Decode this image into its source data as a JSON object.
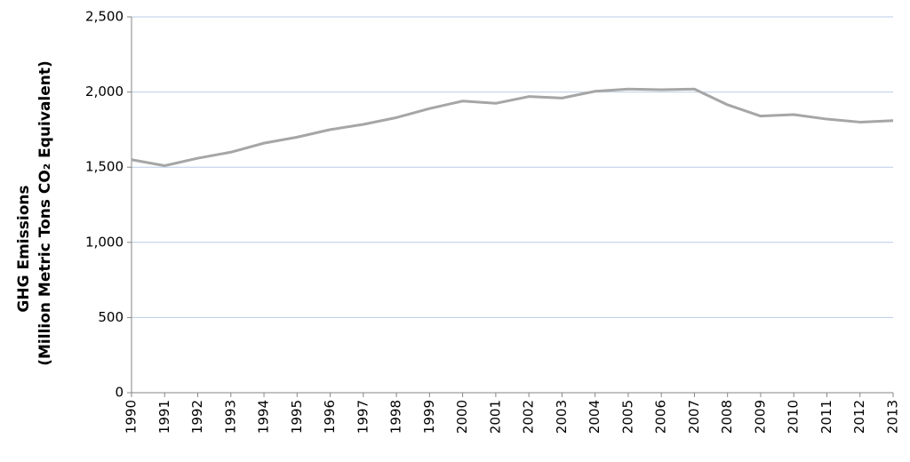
{
  "chart_data": {
    "type": "line",
    "ylabel": [
      "GHG Emissions",
      "(Million Metric Tons CO₂ Equivalent)"
    ],
    "x": [
      1990,
      1991,
      1992,
      1993,
      1994,
      1995,
      1996,
      1997,
      1998,
      1999,
      2000,
      2001,
      2002,
      2003,
      2004,
      2005,
      2006,
      2007,
      2008,
      2009,
      2010,
      2011,
      2012,
      2013
    ],
    "xlim": [
      1990,
      2013
    ],
    "xticks": [
      1990,
      1991,
      1992,
      1993,
      1994,
      1995,
      1996,
      1997,
      1998,
      1999,
      2000,
      2001,
      2002,
      2003,
      2004,
      2005,
      2006,
      2007,
      2008,
      2009,
      2010,
      2011,
      2012,
      2013
    ],
    "series": [
      {
        "color": "#a6a6a6",
        "values": [
          1550,
          1510,
          1560,
          1600,
          1660,
          1700,
          1750,
          1785,
          1830,
          1890,
          1940,
          1925,
          1970,
          1960,
          2005,
          2020,
          2015,
          2020,
          1915,
          1840,
          1850,
          1820,
          1800,
          1810
        ]
      }
    ],
    "ylim": [
      0,
      2500
    ],
    "yticks": [
      0,
      500,
      {
        "value": 1000,
        "label": "1,000"
      },
      {
        "value": 1500,
        "label": "1,500"
      },
      {
        "value": 2000,
        "label": "2,000"
      },
      {
        "value": 2500,
        "label": "2,500"
      }
    ],
    "grid": true,
    "grid_color": "#b9cde5"
  }
}
